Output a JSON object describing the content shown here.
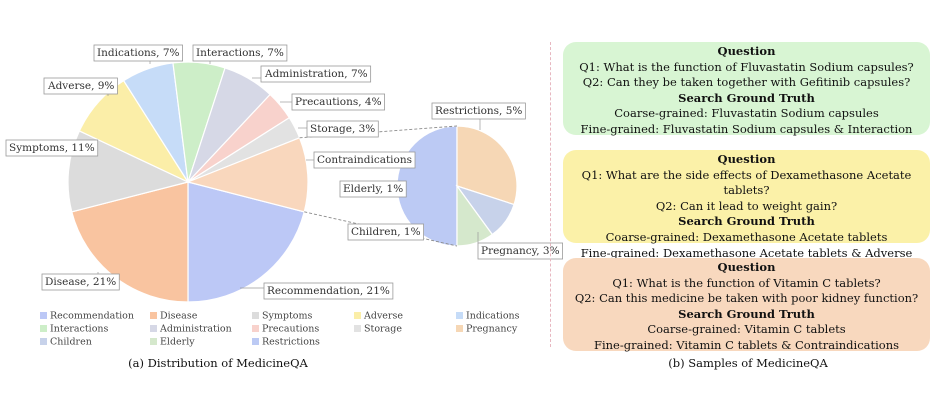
{
  "chart_data": {
    "type": "pie",
    "categories": [
      "Recommendation",
      "Disease",
      "Symptoms",
      "Adverse",
      "Indications",
      "Interactions",
      "Administration",
      "Precautions",
      "Storage",
      "Contraindications",
      "Restrictions",
      "Pregnancy",
      "Children",
      "Elderly"
    ],
    "labels": [
      "Recommendation, 21%",
      "Disease, 21%",
      "Symptoms, 11%",
      "Adverse, 9%",
      "Indications, 7%",
      "Interactions, 7%",
      "Administration, 7%",
      "Precautions, 4%",
      "Storage, 3%",
      "Contraindications",
      "Restrictions, 5%",
      "Pregnancy, 3%",
      "Children, 1%",
      "Elderly, 1%"
    ],
    "values": [
      21,
      21,
      11,
      9,
      7,
      7,
      7,
      4,
      3,
      10,
      5,
      3,
      1,
      1
    ],
    "breakout": {
      "parent": "Contraindications",
      "categories": [
        "Restrictions",
        "Pregnancy",
        "Children",
        "Elderly"
      ],
      "values": [
        5,
        3,
        1,
        1
      ]
    },
    "colors": {
      "Recommendation": "#bcc8f6",
      "Disease": "#f9c4a0",
      "Symptoms": "#dcdcdc",
      "Adverse": "#fbeea8",
      "Indications": "#c6dcf8",
      "Interactions": "#cdeec8",
      "Administration": "#d6d8e6",
      "Precautions": "#f8d2cc",
      "Storage": "#e2e2e2",
      "Contraindications": "#f9d7bd",
      "Restrictions": "#bccaf4",
      "Pregnancy": "#f6d7b5",
      "Children": "#c7d2ea",
      "Elderly": "#d5e8cc"
    },
    "legend": {
      "placement": "bottom",
      "items": [
        "Recommendation",
        "Disease",
        "Symptoms",
        "Adverse",
        "Indications",
        "Interactions",
        "Administration",
        "Precautions",
        "Storage",
        "Pregnancy",
        "Children",
        "Elderly",
        "Restrictions"
      ]
    },
    "caption": "(a) Distribution of MedicineQA"
  },
  "samples": {
    "caption": "(b) Samples of MedicineQA",
    "cards": [
      {
        "question_heading": "Question",
        "q1": "Q1: What is the function of Fluvastatin Sodium capsules?",
        "q2": "Q2: Can they be taken together with Gefitinib capsules?",
        "truth_heading": "Search Ground Truth",
        "coarse": "Coarse-grained: Fluvastatin Sodium capsules",
        "fine": "Fine-grained: Fluvastatin Sodium capsules & Interaction",
        "color": "#d8f5d3"
      },
      {
        "question_heading": "Question",
        "q1": "Q1: What are the side effects of Dexamethasone Acetate tablets?",
        "q2": "Q2: Can it lead to weight gain?",
        "truth_heading": "Search Ground Truth",
        "coarse": "Coarse-grained: Dexamethasone Acetate tablets",
        "fine": "Fine-grained: Dexamethasone Acetate tablets & Adverse Reaction",
        "color": "#fbf1a8"
      },
      {
        "question_heading": "Question",
        "q1": "Q1: What is the function of Vitamin C tablets?",
        "q2": "Q2: Can this medicine be taken with poor kidney function?",
        "truth_heading": "Search Ground Truth",
        "coarse": "Coarse-grained: Vitamin C tablets",
        "fine": "Fine-grained: Vitamin C tablets & Contraindications",
        "color": "#f8d8be"
      }
    ]
  }
}
